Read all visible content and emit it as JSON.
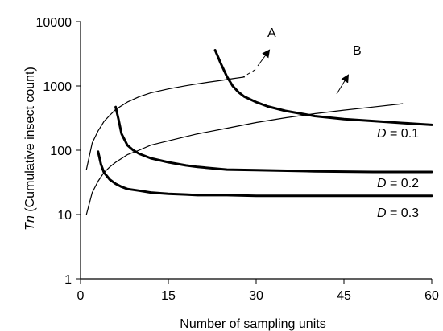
{
  "chart_data": {
    "type": "line",
    "title": "",
    "xlabel": "Number of sampling units",
    "ylabel": {
      "italic": "Tn",
      "rest": " (Cumulative insect count)"
    },
    "xlim": [
      0,
      60
    ],
    "ylim": [
      1,
      10000
    ],
    "yscale": "log",
    "grid": false,
    "legend": "none",
    "x_ticks": [
      {
        "value": 0,
        "label": "0"
      },
      {
        "value": 15,
        "label": "15"
      },
      {
        "value": 30,
        "label": "30"
      },
      {
        "value": 45,
        "label": "45"
      },
      {
        "value": 60,
        "label": "60"
      }
    ],
    "y_ticks": [
      {
        "value": 1,
        "label": "1"
      },
      {
        "value": 10,
        "label": "10"
      },
      {
        "value": 100,
        "label": "100"
      },
      {
        "value": 1000,
        "label": "1000"
      },
      {
        "value": 10000,
        "label": "10000"
      }
    ],
    "series": [
      {
        "name": "A",
        "style": "thin",
        "x": [
          1,
          2,
          3,
          4,
          5,
          6,
          8,
          10,
          12,
          15,
          18,
          20,
          22,
          24,
          26,
          28
        ],
        "y": [
          50,
          130,
          200,
          280,
          350,
          430,
          560,
          680,
          780,
          900,
          1010,
          1080,
          1150,
          1220,
          1300,
          1380
        ]
      },
      {
        "name": "B",
        "style": "thin",
        "x": [
          1,
          2,
          3,
          4,
          5,
          6,
          8,
          10,
          12,
          15,
          20,
          25,
          30,
          35,
          40,
          45,
          50,
          55
        ],
        "y": [
          10,
          22,
          33,
          45,
          55,
          65,
          85,
          100,
          120,
          140,
          180,
          220,
          270,
          320,
          370,
          420,
          470,
          530
        ]
      },
      {
        "name": "D = 0.1",
        "style": "thick",
        "x": [
          23,
          24,
          25,
          26,
          27,
          28,
          30,
          32,
          35,
          40,
          45,
          50,
          55,
          60
        ],
        "y": [
          3600,
          2200,
          1400,
          1000,
          800,
          680,
          560,
          480,
          410,
          340,
          305,
          285,
          265,
          248
        ]
      },
      {
        "name": "D = 0.2",
        "style": "thick",
        "x": [
          6,
          6.5,
          7,
          8,
          9,
          10,
          12,
          15,
          18,
          20,
          25,
          30,
          40,
          50,
          60
        ],
        "y": [
          470,
          300,
          180,
          120,
          100,
          88,
          75,
          65,
          58,
          55,
          50,
          49,
          47,
          46,
          46
        ]
      },
      {
        "name": "D = 0.3",
        "style": "thick",
        "x": [
          3,
          3.5,
          4,
          5,
          6,
          7,
          8,
          10,
          12,
          15,
          18,
          20,
          25,
          30,
          40,
          50,
          60
        ],
        "y": [
          95,
          60,
          45,
          35,
          30,
          27,
          25,
          23.5,
          22,
          21,
          20.5,
          20,
          20,
          19.5,
          19.5,
          19.5,
          19.5
        ]
      }
    ],
    "annotations": {
      "A": "A",
      "B": "B",
      "d1": {
        "italic": "D",
        "rest": " = 0.1"
      },
      "d2": {
        "italic": "D",
        "rest": " = 0.2"
      },
      "d3": {
        "italic": "D",
        "rest": " = 0.3"
      }
    }
  }
}
